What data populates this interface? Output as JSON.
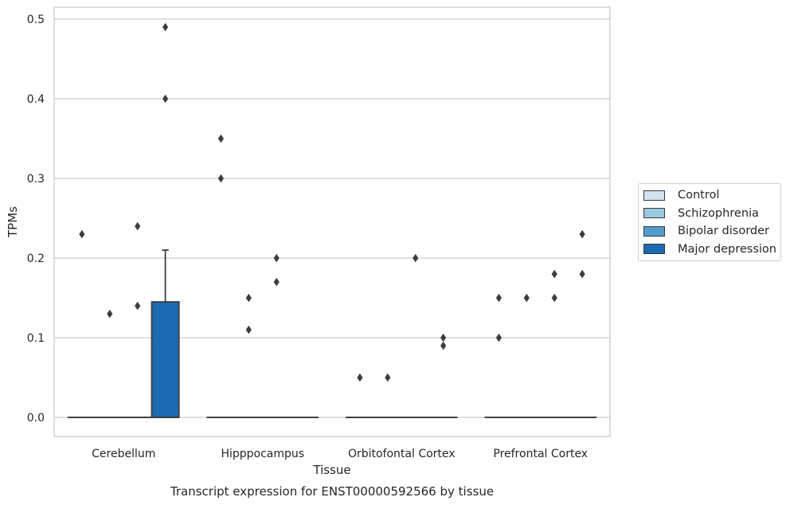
{
  "chart_data": {
    "type": "box",
    "title": "Transcript expression for ENST00000592566 by tissue",
    "xlabel": "Tissue",
    "ylabel": "TPMs",
    "ylim": [
      -0.024,
      0.515
    ],
    "yticks": [
      "0.0",
      "0.1",
      "0.2",
      "0.3",
      "0.4",
      "0.5"
    ],
    "categories": [
      "Cerebellum",
      "Hipppocampus",
      "Orbitofontal Cortex",
      "Prefrontal Cortex"
    ],
    "grid": true,
    "legend_position": "right",
    "series": [
      {
        "name": "Control",
        "color": "#d1e2f2",
        "boxes": [
          {
            "q1": 0,
            "median": 0,
            "q3": 0,
            "whisker_low": 0,
            "whisker_high": 0,
            "outliers": [
              0.23
            ]
          },
          {
            "q1": 0,
            "median": 0,
            "q3": 0,
            "whisker_low": 0,
            "whisker_high": 0,
            "outliers": [
              0.35,
              0.3
            ]
          },
          {
            "q1": 0,
            "median": 0,
            "q3": 0,
            "whisker_low": 0,
            "whisker_high": 0,
            "outliers": [
              0.05
            ]
          },
          {
            "q1": 0,
            "median": 0,
            "q3": 0,
            "whisker_low": 0,
            "whisker_high": 0,
            "outliers": [
              0.15,
              0.1
            ]
          }
        ]
      },
      {
        "name": "Schizophrenia",
        "color": "#9ac8e0",
        "boxes": [
          {
            "q1": 0,
            "median": 0,
            "q3": 0,
            "whisker_low": 0,
            "whisker_high": 0,
            "outliers": [
              0.13
            ]
          },
          {
            "q1": 0,
            "median": 0,
            "q3": 0,
            "whisker_low": 0,
            "whisker_high": 0,
            "outliers": [
              0.15,
              0.11
            ]
          },
          {
            "q1": 0,
            "median": 0,
            "q3": 0,
            "whisker_low": 0,
            "whisker_high": 0,
            "outliers": [
              0.05
            ]
          },
          {
            "q1": 0,
            "median": 0,
            "q3": 0,
            "whisker_low": 0,
            "whisker_high": 0,
            "outliers": [
              0.15
            ]
          }
        ]
      },
      {
        "name": "Bipolar disorder",
        "color": "#529dcc",
        "boxes": [
          {
            "q1": 0,
            "median": 0,
            "q3": 0,
            "whisker_low": 0,
            "whisker_high": 0,
            "outliers": [
              0.24,
              0.14
            ]
          },
          {
            "q1": 0,
            "median": 0,
            "q3": 0,
            "whisker_low": 0,
            "whisker_high": 0,
            "outliers": [
              0.2,
              0.17
            ]
          },
          {
            "q1": 0,
            "median": 0,
            "q3": 0,
            "whisker_low": 0,
            "whisker_high": 0,
            "outliers": [
              0.2
            ]
          },
          {
            "q1": 0,
            "median": 0,
            "q3": 0,
            "whisker_low": 0,
            "whisker_high": 0,
            "outliers": [
              0.18,
              0.15
            ]
          }
        ]
      },
      {
        "name": "Major depression",
        "color": "#1c6aaf",
        "boxes": [
          {
            "q1": 0,
            "median": 0,
            "q3": 0.145,
            "whisker_low": 0,
            "whisker_high": 0.21,
            "outliers": [
              0.49,
              0.4
            ]
          },
          {
            "q1": 0,
            "median": 0,
            "q3": 0,
            "whisker_low": 0,
            "whisker_high": 0,
            "outliers": []
          },
          {
            "q1": 0,
            "median": 0,
            "q3": 0,
            "whisker_low": 0,
            "whisker_high": 0,
            "outliers": [
              0.1,
              0.09
            ]
          },
          {
            "q1": 0,
            "median": 0,
            "q3": 0,
            "whisker_low": 0,
            "whisker_high": 0,
            "outliers": [
              0.23,
              0.18
            ]
          }
        ]
      }
    ]
  },
  "colors": {
    "grid": "#cccccc",
    "frame": "#cccccc",
    "line": "#3d3d3d"
  }
}
